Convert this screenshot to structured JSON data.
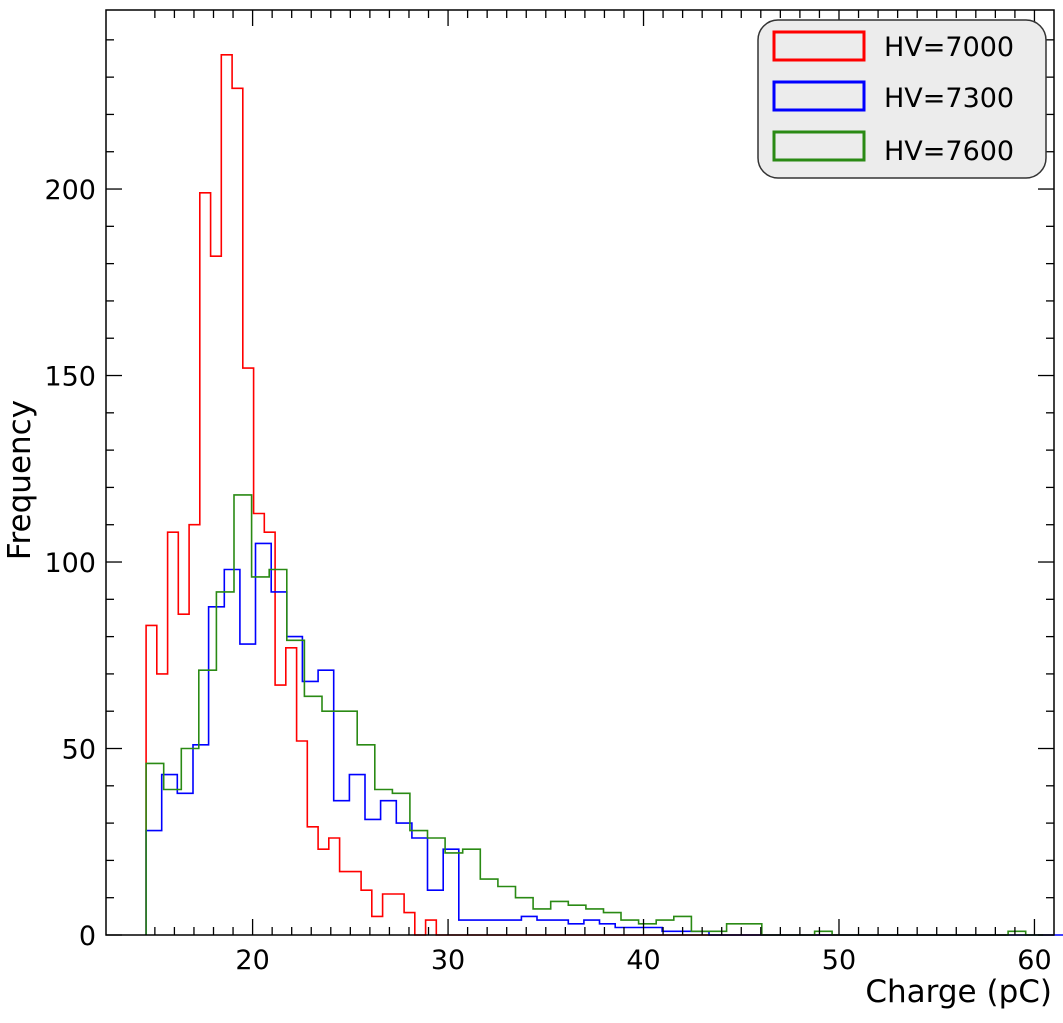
{
  "chart_data": {
    "type": "histogram",
    "xlabel": "Charge (pC)",
    "ylabel": "Frequency",
    "xlim": [
      12.5,
      61
    ],
    "ylim": [
      0,
      248
    ],
    "xticks": [
      20,
      30,
      40,
      50,
      60
    ],
    "yticks": [
      0,
      50,
      100,
      150,
      200
    ],
    "x_tick_labels": [
      "20",
      "30",
      "40",
      "50",
      "60"
    ],
    "y_tick_labels": [
      "0",
      "50",
      "100",
      "150",
      "200"
    ],
    "grid": false,
    "legend_position": "top-right",
    "colors": {
      "HV=7000": "#ff0000",
      "HV=7300": "#0000ff",
      "HV=7600": "#2a8a14"
    },
    "series": [
      {
        "name": "HV=7000",
        "color": "#ff0000",
        "bin_width": 0.55,
        "x_start": 14.55,
        "values": [
          83,
          70,
          108,
          86,
          110,
          199,
          182,
          236,
          227,
          152,
          113,
          108,
          67,
          77,
          52,
          29,
          23,
          26,
          17,
          17,
          12,
          5,
          11,
          11,
          6,
          0,
          4,
          0,
          0,
          0,
          0,
          0,
          0,
          0,
          0,
          0,
          0,
          0,
          0,
          0,
          0,
          0,
          0,
          0,
          0,
          0,
          0,
          0,
          0,
          0,
          0,
          0,
          0,
          0,
          0,
          0,
          0,
          0,
          0,
          0,
          0,
          0,
          0,
          0,
          0,
          0,
          0,
          0,
          0,
          0,
          0,
          0,
          0,
          0,
          0,
          0,
          0,
          0,
          0,
          0
        ]
      },
      {
        "name": "HV=7300",
        "color": "#0000ff",
        "bin_width": 0.8,
        "x_start": 14.55,
        "values": [
          28,
          43,
          38,
          51,
          88,
          98,
          78,
          105,
          92,
          80,
          68,
          71,
          36,
          43,
          31,
          36,
          30,
          26,
          12,
          23,
          4,
          4,
          4,
          4,
          5,
          4,
          4,
          3,
          4,
          3,
          2,
          2,
          2,
          1,
          1,
          1,
          0,
          0,
          0,
          0,
          0,
          0,
          0,
          0,
          0,
          0,
          0,
          0,
          0,
          0,
          0,
          0,
          0,
          0,
          0,
          0,
          0,
          0,
          0,
          0
        ]
      },
      {
        "name": "HV=7600",
        "color": "#2a8a14",
        "bin_width": 0.9,
        "x_start": 14.55,
        "values": [
          46,
          39,
          50,
          71,
          92,
          118,
          96,
          98,
          79,
          64,
          60,
          60,
          51,
          39,
          38,
          28,
          26,
          22,
          23,
          15,
          13,
          10,
          7,
          9,
          8,
          7,
          6,
          4,
          3,
          4,
          5,
          1,
          1,
          3,
          3,
          0,
          0,
          0,
          1,
          0,
          0,
          0,
          0,
          0,
          0,
          0,
          0,
          0,
          0,
          1,
          0
        ]
      }
    ]
  }
}
